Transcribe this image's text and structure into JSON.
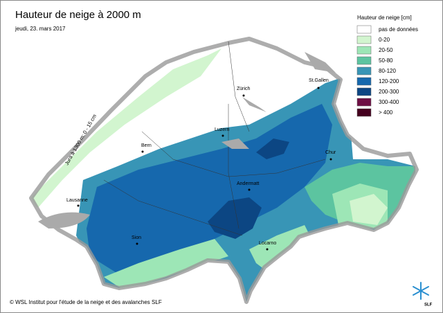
{
  "header": {
    "title": "Hauteur de neige à 2000 m",
    "date": "jeudi, 23. mars 2017"
  },
  "legend": {
    "title": "Hauteur de neige [cm]",
    "items": [
      {
        "label": "pas de données",
        "color": "#ffffff"
      },
      {
        "label": "0-20",
        "color": "#d2f5cf"
      },
      {
        "label": "20-50",
        "color": "#9de6b6"
      },
      {
        "label": "50-80",
        "color": "#5cc4a0"
      },
      {
        "label": "80-120",
        "color": "#3895b6"
      },
      {
        "label": "120-200",
        "color": "#1668ad"
      },
      {
        "label": "200-300",
        "color": "#0c4683"
      },
      {
        "label": "300-400",
        "color": "#6e0f44"
      },
      {
        "label": "> 400",
        "color": "#44001e"
      }
    ]
  },
  "cities": [
    "Zürich",
    "St.Gallen",
    "Luzern",
    "Bern",
    "Chur",
    "Andermatt",
    "Lausanne",
    "Sion",
    "Locarno"
  ],
  "annotation": "Jura à 1300 m: 0 - 15 cm",
  "footer": {
    "copyright": "© WSL Institut pour l'étude de la neige et des avalanches SLF",
    "logo": "SLF"
  }
}
